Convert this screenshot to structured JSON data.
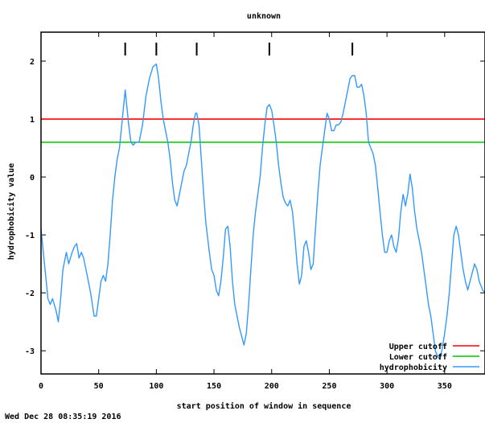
{
  "chart_data": {
    "type": "line",
    "title": "unknown",
    "xlabel": "start position of window in sequence",
    "ylabel": "hydrophobicity value",
    "xlim": [
      0,
      385
    ],
    "ylim": [
      -3.4,
      2.5
    ],
    "x_ticks": [
      0,
      50,
      100,
      150,
      200,
      250,
      300,
      350
    ],
    "y_ticks": [
      2,
      1,
      0,
      -1,
      -2,
      -3
    ],
    "x_tick_labels": [
      "0",
      "50",
      "100",
      "150",
      "200",
      "250",
      "300",
      "350"
    ],
    "y_tick_labels": [
      "2",
      "1",
      "0",
      "-1",
      "-2",
      "-3"
    ],
    "grid": false,
    "legend_position": "bottom-right",
    "cutoffs": [
      {
        "name": "Upper cutoff",
        "value": 1.0,
        "color": "#ff0000"
      },
      {
        "name": "Lower cutoff",
        "value": 0.6,
        "color": "#00c000"
      }
    ],
    "peak_markers": [
      73,
      100,
      135,
      198,
      270
    ],
    "series": [
      {
        "name": "hydrophobicity",
        "color": "#3399ff",
        "points": [
          [
            0,
            -0.9
          ],
          [
            3,
            -1.5
          ],
          [
            6,
            -2.1
          ],
          [
            8,
            -2.2
          ],
          [
            10,
            -2.1
          ],
          [
            13,
            -2.3
          ],
          [
            15,
            -2.5
          ],
          [
            17,
            -2.1
          ],
          [
            19,
            -1.6
          ],
          [
            22,
            -1.3
          ],
          [
            24,
            -1.5
          ],
          [
            27,
            -1.3
          ],
          [
            29,
            -1.2
          ],
          [
            31,
            -1.15
          ],
          [
            33,
            -1.4
          ],
          [
            35,
            -1.3
          ],
          [
            37,
            -1.4
          ],
          [
            40,
            -1.7
          ],
          [
            43,
            -2.0
          ],
          [
            46,
            -2.4
          ],
          [
            48,
            -2.4
          ],
          [
            50,
            -2.1
          ],
          [
            52,
            -1.8
          ],
          [
            54,
            -1.7
          ],
          [
            56,
            -1.8
          ],
          [
            58,
            -1.5
          ],
          [
            60,
            -1.0
          ],
          [
            62,
            -0.4
          ],
          [
            64,
            0.0
          ],
          [
            66,
            0.3
          ],
          [
            68,
            0.5
          ],
          [
            70,
            0.9
          ],
          [
            72,
            1.3
          ],
          [
            73,
            1.5
          ],
          [
            74,
            1.3
          ],
          [
            76,
            0.9
          ],
          [
            78,
            0.6
          ],
          [
            80,
            0.55
          ],
          [
            82,
            0.6
          ],
          [
            85,
            0.6
          ],
          [
            88,
            0.9
          ],
          [
            91,
            1.4
          ],
          [
            94,
            1.7
          ],
          [
            97,
            1.9
          ],
          [
            100,
            1.95
          ],
          [
            102,
            1.7
          ],
          [
            104,
            1.3
          ],
          [
            106,
            1.0
          ],
          [
            108,
            0.8
          ],
          [
            110,
            0.6
          ],
          [
            112,
            0.3
          ],
          [
            114,
            -0.1
          ],
          [
            116,
            -0.4
          ],
          [
            118,
            -0.5
          ],
          [
            120,
            -0.3
          ],
          [
            122,
            -0.1
          ],
          [
            124,
            0.1
          ],
          [
            126,
            0.2
          ],
          [
            128,
            0.4
          ],
          [
            130,
            0.6
          ],
          [
            132,
            0.9
          ],
          [
            134,
            1.1
          ],
          [
            135,
            1.1
          ],
          [
            137,
            0.9
          ],
          [
            139,
            0.3
          ],
          [
            141,
            -0.3
          ],
          [
            143,
            -0.8
          ],
          [
            146,
            -1.3
          ],
          [
            148,
            -1.6
          ],
          [
            150,
            -1.7
          ],
          [
            152,
            -1.95
          ],
          [
            154,
            -2.05
          ],
          [
            156,
            -1.8
          ],
          [
            158,
            -1.4
          ],
          [
            160,
            -0.9
          ],
          [
            162,
            -0.85
          ],
          [
            164,
            -1.2
          ],
          [
            166,
            -1.8
          ],
          [
            168,
            -2.2
          ],
          [
            170,
            -2.4
          ],
          [
            172,
            -2.6
          ],
          [
            174,
            -2.75
          ],
          [
            176,
            -2.9
          ],
          [
            178,
            -2.7
          ],
          [
            180,
            -2.2
          ],
          [
            182,
            -1.6
          ],
          [
            184,
            -1.0
          ],
          [
            186,
            -0.6
          ],
          [
            188,
            -0.3
          ],
          [
            190,
            0.0
          ],
          [
            192,
            0.5
          ],
          [
            194,
            0.9
          ],
          [
            196,
            1.2
          ],
          [
            198,
            1.25
          ],
          [
            200,
            1.15
          ],
          [
            202,
            0.9
          ],
          [
            204,
            0.6
          ],
          [
            206,
            0.2
          ],
          [
            208,
            -0.1
          ],
          [
            210,
            -0.35
          ],
          [
            212,
            -0.45
          ],
          [
            214,
            -0.5
          ],
          [
            216,
            -0.4
          ],
          [
            218,
            -0.6
          ],
          [
            220,
            -1.0
          ],
          [
            222,
            -1.5
          ],
          [
            224,
            -1.85
          ],
          [
            226,
            -1.7
          ],
          [
            228,
            -1.2
          ],
          [
            230,
            -1.1
          ],
          [
            232,
            -1.3
          ],
          [
            234,
            -1.6
          ],
          [
            236,
            -1.5
          ],
          [
            238,
            -0.9
          ],
          [
            240,
            -0.3
          ],
          [
            242,
            0.2
          ],
          [
            244,
            0.5
          ],
          [
            246,
            0.8
          ],
          [
            248,
            1.1
          ],
          [
            250,
            1.0
          ],
          [
            252,
            0.8
          ],
          [
            254,
            0.8
          ],
          [
            256,
            0.9
          ],
          [
            258,
            0.9
          ],
          [
            260,
            0.95
          ],
          [
            262,
            1.1
          ],
          [
            264,
            1.3
          ],
          [
            266,
            1.5
          ],
          [
            268,
            1.7
          ],
          [
            270,
            1.75
          ],
          [
            272,
            1.75
          ],
          [
            274,
            1.55
          ],
          [
            276,
            1.55
          ],
          [
            278,
            1.6
          ],
          [
            280,
            1.4
          ],
          [
            282,
            1.1
          ],
          [
            284,
            0.6
          ],
          [
            286,
            0.5
          ],
          [
            288,
            0.4
          ],
          [
            290,
            0.2
          ],
          [
            292,
            -0.2
          ],
          [
            294,
            -0.6
          ],
          [
            296,
            -1.0
          ],
          [
            298,
            -1.3
          ],
          [
            300,
            -1.3
          ],
          [
            302,
            -1.1
          ],
          [
            304,
            -1.0
          ],
          [
            306,
            -1.2
          ],
          [
            308,
            -1.3
          ],
          [
            310,
            -1.05
          ],
          [
            312,
            -0.6
          ],
          [
            314,
            -0.3
          ],
          [
            316,
            -0.5
          ],
          [
            318,
            -0.3
          ],
          [
            320,
            0.05
          ],
          [
            322,
            -0.2
          ],
          [
            324,
            -0.6
          ],
          [
            326,
            -0.9
          ],
          [
            328,
            -1.1
          ],
          [
            330,
            -1.3
          ],
          [
            332,
            -1.6
          ],
          [
            334,
            -1.9
          ],
          [
            336,
            -2.2
          ],
          [
            338,
            -2.4
          ],
          [
            340,
            -2.7
          ],
          [
            342,
            -3.0
          ],
          [
            344,
            -3.1
          ],
          [
            346,
            -3.15
          ],
          [
            348,
            -2.95
          ],
          [
            350,
            -2.7
          ],
          [
            352,
            -2.4
          ],
          [
            354,
            -2.0
          ],
          [
            356,
            -1.5
          ],
          [
            358,
            -1.0
          ],
          [
            360,
            -0.85
          ],
          [
            362,
            -1.0
          ],
          [
            364,
            -1.3
          ],
          [
            366,
            -1.6
          ],
          [
            368,
            -1.8
          ],
          [
            370,
            -1.95
          ],
          [
            372,
            -1.8
          ],
          [
            374,
            -1.65
          ],
          [
            376,
            -1.5
          ],
          [
            378,
            -1.6
          ],
          [
            380,
            -1.8
          ],
          [
            383,
            -1.95
          ],
          [
            385,
            -2.0
          ]
        ]
      }
    ]
  },
  "footer": {
    "timestamp": "Wed Dec 28 08:35:19 2016"
  }
}
